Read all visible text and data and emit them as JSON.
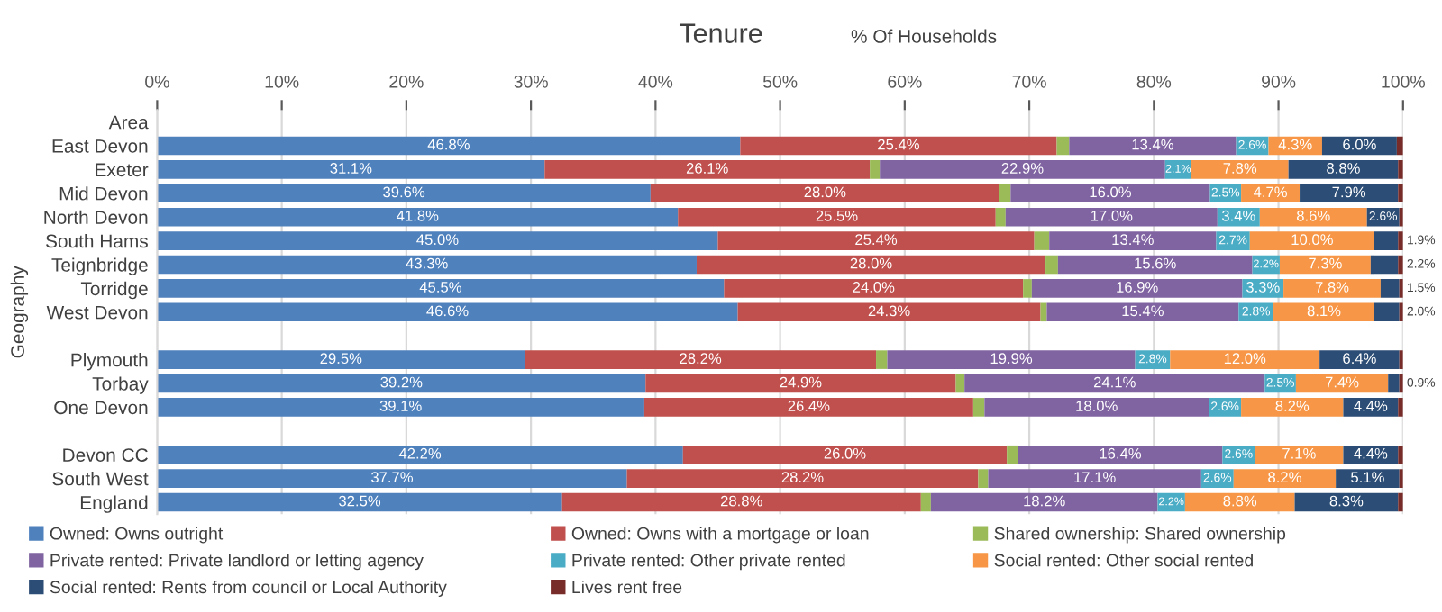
{
  "chart_data": {
    "type": "bar",
    "orientation": "horizontal",
    "stacked": true,
    "title": "Tenure",
    "xlabel": "% Of Households",
    "ylabel": "Geography",
    "categories": [
      "Area",
      "East Devon",
      "Exeter",
      "Mid Devon",
      "North Devon",
      "South Hams",
      "Teignbridge",
      "Torridge",
      "West Devon",
      null,
      "Plymouth",
      "Torbay",
      "One Devon",
      null,
      "Devon CC",
      "South West",
      "England"
    ],
    "xlim": [
      0,
      100
    ],
    "xticks": [
      {
        "value": 0,
        "label": "0%"
      },
      {
        "value": 10,
        "label": "10%"
      },
      {
        "value": 20,
        "label": "20%"
      },
      {
        "value": 30,
        "label": "30%"
      },
      {
        "value": 40,
        "label": "40%"
      },
      {
        "value": 50,
        "label": "50%"
      },
      {
        "value": 60,
        "label": "60%"
      },
      {
        "value": 70,
        "label": "70%"
      },
      {
        "value": 80,
        "label": "80%"
      },
      {
        "value": 90,
        "label": "90%"
      },
      {
        "value": 100,
        "label": "100%"
      }
    ],
    "grid": "x",
    "legend": "bottom",
    "series": [
      {
        "name": "Owned: Owns outright",
        "color": "#4f81bd",
        "values": [
          null,
          46.8,
          31.1,
          39.6,
          41.8,
          45.0,
          43.3,
          45.5,
          46.6,
          null,
          29.5,
          39.2,
          39.1,
          null,
          42.2,
          37.7,
          32.5
        ],
        "value_labels": [
          null,
          "46.8%",
          "31.1%",
          "39.6%",
          "41.8%",
          "45.0%",
          "43.3%",
          "45.5%",
          "46.6%",
          null,
          "29.5%",
          "39.2%",
          "39.1%",
          null,
          "42.2%",
          "37.7%",
          "32.5%"
        ]
      },
      {
        "name": "Owned: Owns with a mortgage or loan",
        "color": "#c0504d",
        "values": [
          null,
          25.4,
          26.1,
          28.0,
          25.5,
          25.4,
          28.0,
          24.0,
          24.3,
          null,
          28.2,
          24.9,
          26.4,
          null,
          26.0,
          28.2,
          28.8
        ],
        "value_labels": [
          null,
          "25.4%",
          "26.1%",
          "28.0%",
          "25.5%",
          "25.4%",
          "28.0%",
          "24.0%",
          "24.3%",
          null,
          "28.2%",
          "24.9%",
          "26.4%",
          null,
          "26.0%",
          "28.2%",
          "28.8%"
        ]
      },
      {
        "name": "Shared ownership: Shared ownership",
        "color": "#9bbb59",
        "values": [
          null,
          1.0,
          0.8,
          0.9,
          0.8,
          1.2,
          1.0,
          0.7,
          0.5,
          null,
          0.9,
          0.7,
          0.9,
          null,
          0.9,
          0.8,
          0.8
        ]
      },
      {
        "name": "Private rented: Private landlord or letting agency",
        "color": "#8064a2",
        "values": [
          null,
          13.4,
          22.9,
          16.0,
          17.0,
          13.4,
          15.6,
          16.9,
          15.4,
          null,
          19.9,
          24.1,
          18.0,
          null,
          16.4,
          17.1,
          18.2
        ],
        "value_labels": [
          null,
          "13.4%",
          "22.9%",
          "16.0%",
          "17.0%",
          "13.4%",
          "15.6%",
          "16.9%",
          "15.4%",
          null,
          "19.9%",
          "24.1%",
          "18.0%",
          null,
          "16.4%",
          "17.1%",
          "18.2%"
        ]
      },
      {
        "name": "Private rented: Other private rented",
        "color": "#4bacc6",
        "values": [
          null,
          2.6,
          2.1,
          2.5,
          3.4,
          2.7,
          2.2,
          3.3,
          2.8,
          null,
          2.8,
          2.5,
          2.6,
          null,
          2.6,
          2.6,
          2.2
        ],
        "value_labels": [
          null,
          "2.6%",
          "2.1%",
          "2.5%",
          "3.4%",
          "2.7%",
          "2.2%",
          "3.3%",
          "2.8%",
          null,
          "2.8%",
          "2.5%",
          "2.6%",
          null,
          "2.6%",
          "2.6%",
          "2.2%"
        ]
      },
      {
        "name": "Social rented: Other social rented",
        "color": "#f79646",
        "values": [
          null,
          4.3,
          7.8,
          4.7,
          8.6,
          10.0,
          7.3,
          7.8,
          8.1,
          null,
          12.0,
          7.4,
          8.2,
          null,
          7.1,
          8.2,
          8.8
        ],
        "value_labels": [
          null,
          "4.3%",
          "7.8%",
          "4.7%",
          "8.6%",
          "10.0%",
          "7.3%",
          "7.8%",
          "8.1%",
          null,
          "12.0%",
          "7.4%",
          "8.2%",
          null,
          "7.1%",
          "8.2%",
          "8.8%"
        ]
      },
      {
        "name": "Social rented: Rents from council or Local Authority",
        "color": "#2c4d75",
        "values": [
          null,
          6.0,
          8.8,
          7.9,
          2.6,
          1.9,
          2.2,
          1.5,
          2.0,
          null,
          6.4,
          0.9,
          4.4,
          null,
          4.4,
          5.1,
          8.3
        ],
        "value_labels": [
          null,
          "6.0%",
          "8.8%",
          "7.9%",
          "2.6%",
          "1.9%",
          "2.2%",
          "1.5%",
          "2.0%",
          null,
          "6.4%",
          "0.9%",
          "4.4%",
          null,
          "4.4%",
          "5.1%",
          "8.3%"
        ]
      },
      {
        "name": "Lives rent free",
        "color": "#772c2a",
        "values": [
          null,
          0.5,
          0.4,
          0.4,
          0.3,
          0.4,
          0.4,
          0.3,
          0.3,
          null,
          0.3,
          0.3,
          0.4,
          null,
          0.4,
          0.3,
          0.4
        ]
      }
    ]
  }
}
